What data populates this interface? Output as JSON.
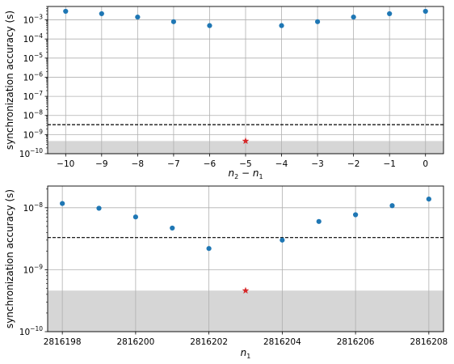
{
  "chart_data": [
    {
      "type": "scatter",
      "xlabel": "n2 − n1",
      "ylabel": "synchronization accuracy (s)",
      "yscale": "log",
      "xlim": [
        -10.5,
        0.5
      ],
      "ylim_log10": [
        -10,
        -2.3
      ],
      "xticks": [
        -10,
        -9,
        -8,
        -7,
        -6,
        -5,
        -4,
        -3,
        -2,
        -1,
        0
      ],
      "xtick_labels": [
        "−10",
        "−9",
        "−8",
        "−7",
        "−6",
        "−5",
        "−4",
        "−3",
        "−2",
        "−1",
        "0"
      ],
      "yticks_log10": [
        -10,
        -9,
        -8,
        -7,
        -6,
        -5,
        -4,
        -3
      ],
      "grid": true,
      "series": [
        {
          "marker": "circle",
          "color": "#1f77b4",
          "x": [
            -10,
            -9,
            -8,
            -7,
            -6,
            -4,
            -3,
            -2,
            -1,
            0
          ],
          "y": [
            0.0028,
            0.0021,
            0.0014,
            0.0008,
            0.0005,
            0.0005,
            0.0008,
            0.0014,
            0.0021,
            0.0028
          ]
        },
        {
          "marker": "star",
          "color": "#d62728",
          "x": [
            -5
          ],
          "y": [
            4.6e-10
          ]
        }
      ],
      "reference_line": {
        "y": 3.3e-09,
        "style": "dashed",
        "color": "#000000"
      },
      "shaded_band": {
        "y_from": 1e-10,
        "y_to": 4.6e-10,
        "color": "#d6d6d6"
      }
    },
    {
      "type": "scatter",
      "xlabel": "n1",
      "ylabel": "synchronization accuracy (s)",
      "yscale": "log",
      "xlim": [
        2816197.6,
        2816208.4
      ],
      "ylim_log10": [
        -10,
        -7.65
      ],
      "xticks": [
        2816198,
        2816200,
        2816202,
        2816204,
        2816206,
        2816208
      ],
      "xtick_labels": [
        "2816198",
        "2816200",
        "2816202",
        "2816204",
        "2816206",
        "2816208"
      ],
      "yticks_log10": [
        -10,
        -9,
        -8
      ],
      "grid": true,
      "series": [
        {
          "marker": "circle",
          "color": "#1f77b4",
          "x": [
            2816198,
            2816199,
            2816200,
            2816201,
            2816202,
            2816204,
            2816205,
            2816206,
            2816207,
            2816208
          ],
          "y": [
            1.17e-08,
            9.8e-09,
            7.1e-09,
            4.7e-09,
            2.2e-09,
            3e-09,
            6e-09,
            7.7e-09,
            1.08e-08,
            1.38e-08
          ]
        },
        {
          "marker": "star",
          "color": "#d62728",
          "x": [
            2816203
          ],
          "y": [
            4.6e-10
          ]
        }
      ],
      "reference_line": {
        "y": 3.3e-09,
        "style": "dashed",
        "color": "#000000"
      },
      "shaded_band": {
        "y_from": 1e-10,
        "y_to": 4.6e-10,
        "color": "#d6d6d6"
      }
    }
  ]
}
